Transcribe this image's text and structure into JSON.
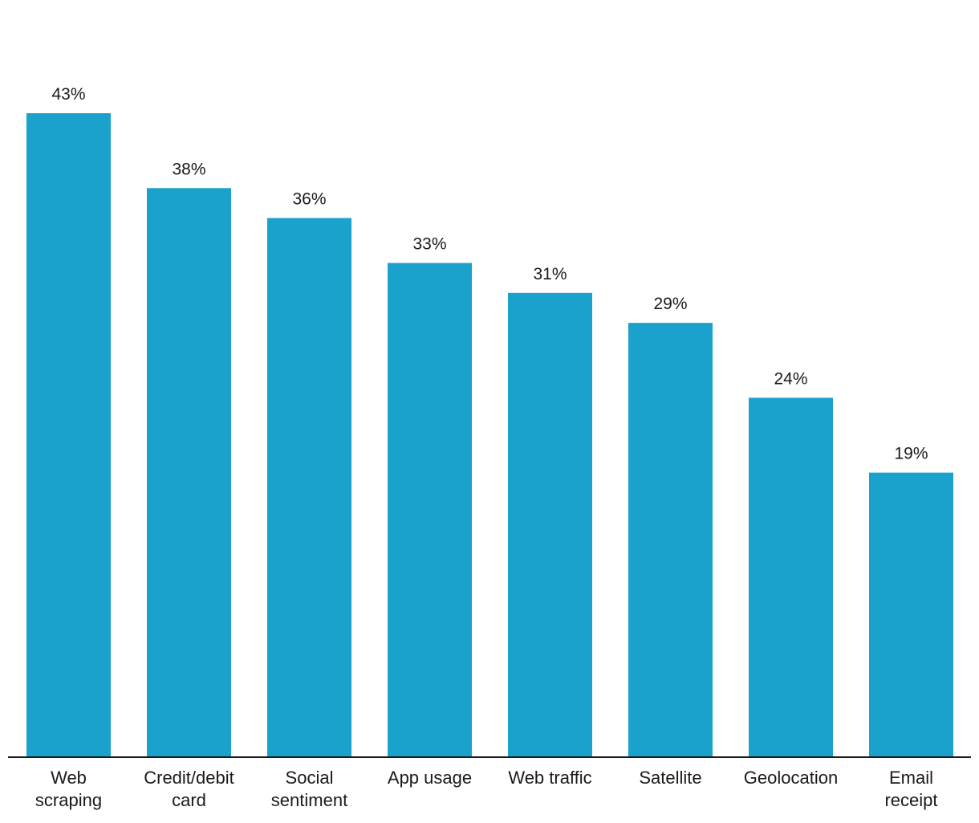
{
  "chart_data": {
    "type": "bar",
    "categories": [
      [
        "Web",
        "scraping"
      ],
      [
        "Credit/debit",
        "card"
      ],
      [
        "Social",
        "sentiment"
      ],
      [
        "App usage"
      ],
      [
        "Web traffic"
      ],
      [
        "Satellite"
      ],
      [
        "Geolocation"
      ],
      [
        "Email",
        "receipt"
      ]
    ],
    "values": [
      43,
      38,
      36,
      33,
      31,
      29,
      24,
      19
    ],
    "value_labels": [
      "43%",
      "38%",
      "36%",
      "33%",
      "31%",
      "29%",
      "24%",
      "19%"
    ],
    "title": "",
    "xlabel": "",
    "ylabel": "",
    "ylim": [
      0,
      43
    ],
    "grid": false,
    "legend": "none",
    "colors": {
      "bar": "#1aa1cc",
      "axis": "#1a1a1a",
      "text": "#1a1a1a"
    }
  }
}
